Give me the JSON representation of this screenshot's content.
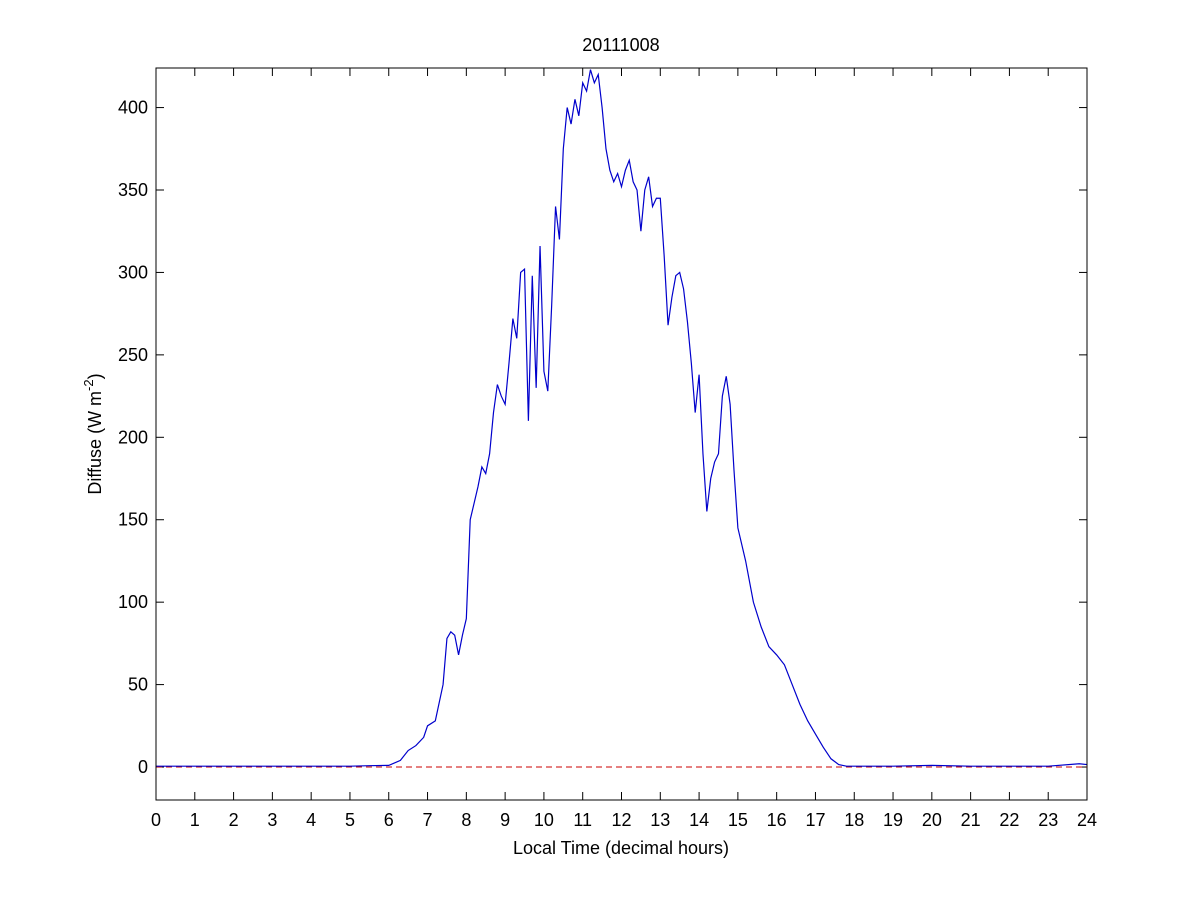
{
  "chart_data": {
    "type": "line",
    "title": "20111008",
    "xlabel": "Local Time (decimal hours)",
    "ylabel": {
      "text": "Diffuse (W m",
      "superscript": "-2",
      "suffix": ")"
    },
    "color": "#0000cc",
    "reference_line": {
      "value": 0,
      "color": "#cc0000",
      "style": "dashed"
    },
    "x": [
      0,
      1,
      2,
      3,
      4,
      5,
      5.5,
      6,
      6.3,
      6.5,
      6.7,
      6.9,
      7.0,
      7.2,
      7.4,
      7.5,
      7.6,
      7.7,
      7.8,
      7.9,
      8.0,
      8.1,
      8.2,
      8.3,
      8.4,
      8.5,
      8.6,
      8.7,
      8.8,
      8.9,
      9.0,
      9.1,
      9.2,
      9.3,
      9.4,
      9.5,
      9.6,
      9.7,
      9.8,
      9.9,
      10.0,
      10.1,
      10.2,
      10.3,
      10.4,
      10.5,
      10.6,
      10.7,
      10.8,
      10.9,
      11.0,
      11.1,
      11.2,
      11.3,
      11.4,
      11.5,
      11.6,
      11.7,
      11.8,
      11.9,
      12.0,
      12.1,
      12.2,
      12.3,
      12.4,
      12.5,
      12.6,
      12.7,
      12.8,
      12.9,
      13.0,
      13.1,
      13.2,
      13.3,
      13.4,
      13.5,
      13.6,
      13.7,
      13.8,
      13.9,
      14.0,
      14.1,
      14.2,
      14.3,
      14.4,
      14.5,
      14.6,
      14.7,
      14.8,
      14.9,
      15.0,
      15.2,
      15.4,
      15.6,
      15.8,
      16.0,
      16.2,
      16.4,
      16.6,
      16.8,
      17.0,
      17.2,
      17.4,
      17.6,
      17.8,
      18,
      19,
      20,
      21,
      22,
      23,
      23.8,
      24
    ],
    "values": [
      0.5,
      0.5,
      0.5,
      0.5,
      0.5,
      0.5,
      0.8,
      1,
      4,
      10,
      13,
      18,
      25,
      28,
      50,
      78,
      82,
      80,
      68,
      80,
      90,
      150,
      160,
      170,
      182,
      178,
      190,
      215,
      232,
      225,
      220,
      245,
      272,
      260,
      300,
      302,
      210,
      298,
      230,
      316,
      240,
      228,
      280,
      340,
      320,
      375,
      400,
      390,
      405,
      395,
      415,
      410,
      423,
      415,
      420,
      400,
      375,
      362,
      355,
      360,
      352,
      362,
      368,
      355,
      350,
      325,
      350,
      358,
      340,
      345,
      345,
      310,
      268,
      285,
      298,
      300,
      290,
      270,
      245,
      215,
      238,
      190,
      155,
      175,
      185,
      190,
      225,
      237,
      220,
      180,
      145,
      125,
      100,
      85,
      73,
      68,
      62,
      50,
      38,
      28,
      20,
      12,
      5,
      1.5,
      0.5,
      0.5,
      0.5,
      1,
      0.5,
      0.5,
      0.5,
      2,
      1.5
    ],
    "xlim": [
      0,
      24
    ],
    "xticks": [
      0,
      1,
      2,
      3,
      4,
      5,
      6,
      7,
      8,
      9,
      10,
      11,
      12,
      13,
      14,
      15,
      16,
      17,
      18,
      19,
      20,
      21,
      22,
      23,
      24
    ],
    "ylim": [
      -20,
      424
    ],
    "yticks": [
      0,
      50,
      100,
      150,
      200,
      250,
      300,
      350,
      400
    ]
  }
}
